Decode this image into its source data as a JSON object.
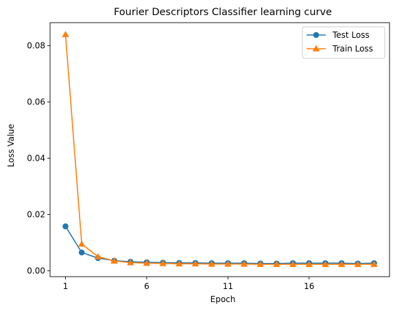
{
  "chart_data": {
    "type": "line",
    "title": "Fourier Descriptors Classifier learning curve",
    "xlabel": "Epoch",
    "ylabel": "Loss Value",
    "xlim": [
      0.05,
      20.95
    ],
    "ylim": [
      -0.0021,
      0.0882
    ],
    "x_ticks": [
      1,
      6,
      11,
      16
    ],
    "y_ticks": [
      0.0,
      0.02,
      0.04,
      0.06,
      0.08
    ],
    "y_tick_labels": [
      "0.00",
      "0.02",
      "0.04",
      "0.06",
      "0.08"
    ],
    "grid": false,
    "legend_position": "top-right",
    "x": [
      1,
      2,
      3,
      4,
      5,
      6,
      7,
      8,
      9,
      10,
      11,
      12,
      13,
      14,
      15,
      16,
      17,
      18,
      19,
      20
    ],
    "series": [
      {
        "name": "Test Loss",
        "color": "#1f77b4",
        "marker": "circle",
        "values": [
          0.0158,
          0.0065,
          0.0045,
          0.0036,
          0.0032,
          0.003,
          0.0029,
          0.0028,
          0.0028,
          0.0027,
          0.0027,
          0.0027,
          0.0026,
          0.0026,
          0.0027,
          0.0027,
          0.0027,
          0.0027,
          0.0026,
          0.0027
        ]
      },
      {
        "name": "Train Loss",
        "color": "#ff7f0e",
        "marker": "triangle",
        "values": [
          0.084,
          0.0095,
          0.005,
          0.0035,
          0.0029,
          0.0027,
          0.0026,
          0.0025,
          0.0025,
          0.0024,
          0.0024,
          0.0024,
          0.0023,
          0.0023,
          0.0023,
          0.0023,
          0.0023,
          0.0023,
          0.0023,
          0.0023
        ]
      }
    ]
  }
}
